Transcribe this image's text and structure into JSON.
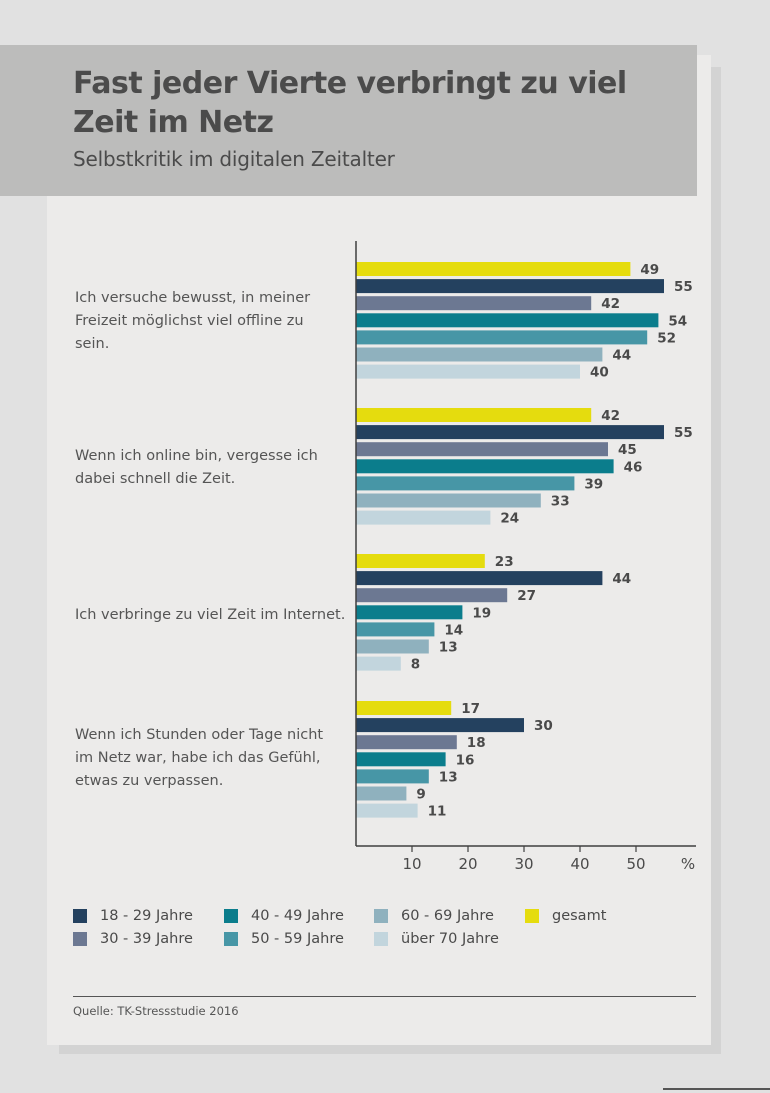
{
  "header": {
    "title": "Fast jeder Vierte verbringt zu viel Zeit im Netz",
    "subtitle": "Selbstkritik im digitalen Zeitalter"
  },
  "chart_data": {
    "type": "bar",
    "orientation": "horizontal",
    "title": "Fast jeder Vierte verbringt zu viel Zeit im Netz",
    "subtitle": "Selbstkritik im digitalen Zeitalter",
    "unit": "%",
    "xlim": [
      0,
      60
    ],
    "x_ticks": [
      "10",
      "20",
      "30",
      "40",
      "50"
    ],
    "categories": [
      "Ich versuche bewusst, in meiner Freizeit möglichst viel offline zu sein.",
      "Wenn ich online bin, vergesse ich dabei schnell die Zeit.",
      "Ich verbringe zu viel Zeit im Internet.",
      "Wenn ich Stunden oder Tage nicht im Netz war, habe ich das Gefühl, etwas zu verpassen."
    ],
    "series": [
      {
        "name": "gesamt",
        "color": "#e5dc0e",
        "values": [
          49,
          42,
          23,
          17
        ]
      },
      {
        "name": "18 - 29 Jahre",
        "color": "#24415f",
        "values": [
          55,
          55,
          44,
          30
        ]
      },
      {
        "name": "30 - 39 Jahre",
        "color": "#6c7892",
        "values": [
          42,
          45,
          27,
          18
        ]
      },
      {
        "name": "40 - 49 Jahre",
        "color": "#0b7d8c",
        "values": [
          54,
          46,
          19,
          16
        ]
      },
      {
        "name": "50 - 59 Jahre",
        "color": "#4796a6",
        "values": [
          52,
          39,
          14,
          13
        ]
      },
      {
        "name": "60 - 69 Jahre",
        "color": "#8fb1be",
        "values": [
          44,
          33,
          13,
          9
        ]
      },
      {
        "name": "über 70 Jahre",
        "color": "#c2d5dd",
        "values": [
          40,
          24,
          8,
          11
        ]
      }
    ],
    "legend_placement": "bottom",
    "grid": false
  },
  "question_lines": [
    [
      "Ich versuche bewusst, in meiner",
      "Freizeit möglichst viel offline zu",
      "sein."
    ],
    [
      "Wenn ich online bin, vergesse ich",
      "dabei schnell die Zeit."
    ],
    [
      "Ich verbringe zu viel Zeit im Internet."
    ],
    [
      "Wenn ich Stunden oder Tage nicht",
      "im Netz war, habe ich das Gefühl,",
      "etwas zu verpassen."
    ]
  ],
  "legend": [
    {
      "label": "18 - 29 Jahre",
      "color": "#24415f"
    },
    {
      "label": "30 - 39 Jahre",
      "color": "#6c7892"
    },
    {
      "label": "40 - 49 Jahre",
      "color": "#0b7d8c"
    },
    {
      "label": "50 - 59 Jahre",
      "color": "#4796a6"
    },
    {
      "label": "60 - 69 Jahre",
      "color": "#8fb1be"
    },
    {
      "label": "über 70 Jahre",
      "color": "#c2d5dd"
    },
    {
      "label": "gesamt",
      "color": "#e5dc0e"
    }
  ],
  "footer": {
    "source": "Quelle: TK-Stressstudie 2016"
  }
}
